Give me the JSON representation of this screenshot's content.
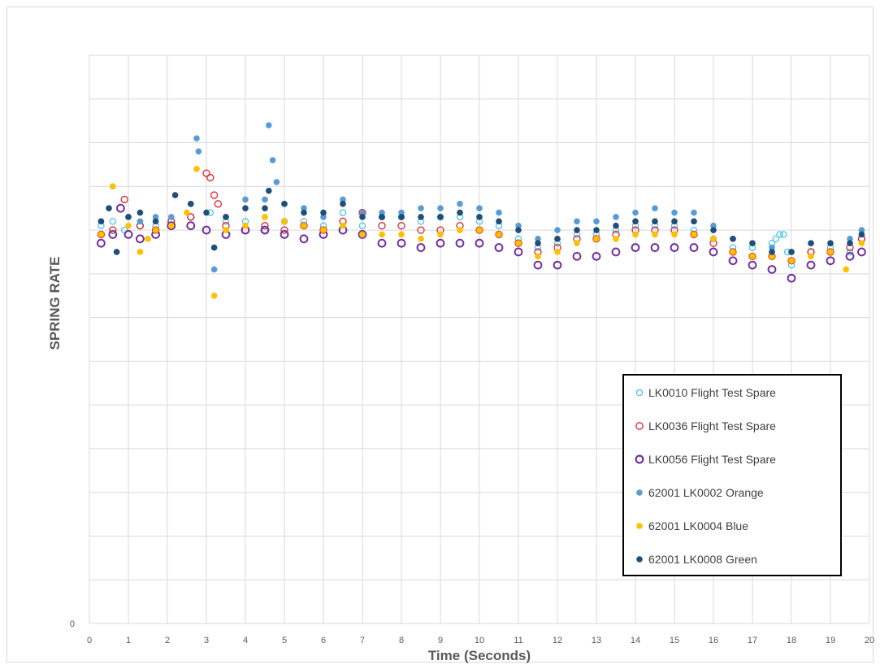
{
  "chart_data": {
    "type": "scatter",
    "title": "",
    "xlabel": "Time (Seconds)",
    "ylabel": "SPRING RATE",
    "xlim": [
      0,
      20
    ],
    "ylim": [
      0,
      130
    ],
    "x_ticks": [
      "0",
      "1",
      "2",
      "3",
      "4",
      "5",
      "6",
      "7",
      "8",
      "9",
      "10",
      "11",
      "12",
      "13",
      "14",
      "15",
      "16",
      "17",
      "18",
      "19",
      "20"
    ],
    "y_ticks": [
      "0"
    ],
    "grid": true,
    "legend_position": "bottom-right",
    "series": [
      {
        "name": "LK0010 Flight Test Spare",
        "color": "#4bc5e8",
        "marker": "hollow",
        "x": [
          0.3,
          0.6,
          0.9,
          1.3,
          1.7,
          2.1,
          2.6,
          3.1,
          3.5,
          4.0,
          4.5,
          5.0,
          5.5,
          6.0,
          6.5,
          7.0,
          7.5,
          8.0,
          8.5,
          9.0,
          9.5,
          10.0,
          10.5,
          11.0,
          11.5,
          12.0,
          12.5,
          13.0,
          13.5,
          14.0,
          14.5,
          15.0,
          15.5,
          16.0,
          16.5,
          17.0,
          17.5,
          17.6,
          17.7,
          17.8,
          17.9,
          18.0,
          18.5,
          19.0,
          19.5,
          19.8
        ],
        "y": [
          91,
          92,
          90,
          91,
          91,
          92,
          93,
          94,
          92,
          92,
          90,
          92,
          92,
          91,
          94,
          91,
          93,
          93,
          92,
          93,
          93,
          92,
          91,
          88,
          86,
          87,
          89,
          89,
          90,
          91,
          91,
          91,
          90,
          88,
          86,
          86,
          87,
          88,
          89,
          89,
          85,
          82,
          85,
          86,
          85,
          88
        ]
      },
      {
        "name": "LK0036 Flight Test Spare",
        "color": "#e0262b",
        "marker": "hollow",
        "x": [
          0.3,
          0.6,
          0.9,
          1.3,
          1.7,
          2.1,
          2.6,
          3.0,
          3.1,
          3.2,
          3.3,
          3.5,
          4.0,
          4.5,
          5.0,
          5.5,
          6.0,
          6.5,
          7.0,
          7.5,
          8.0,
          8.5,
          9.0,
          9.5,
          10.0,
          10.5,
          11.0,
          11.5,
          12.0,
          12.5,
          13.0,
          13.5,
          14.0,
          14.5,
          15.0,
          15.5,
          16.0,
          16.5,
          17.0,
          17.5,
          18.0,
          18.5,
          19.0,
          19.5,
          19.8
        ],
        "y": [
          89,
          90,
          97,
          91,
          90,
          92,
          93,
          103,
          102,
          98,
          96,
          91,
          90,
          91,
          90,
          91,
          90,
          92,
          94,
          91,
          91,
          90,
          90,
          91,
          90,
          89,
          87,
          85,
          86,
          88,
          88,
          89,
          90,
          90,
          90,
          89,
          87,
          85,
          84,
          84,
          83,
          85,
          85,
          86,
          88
        ]
      },
      {
        "name": "LK0056 Flight Test Spare",
        "color": "#7030a0",
        "marker": "hollow",
        "x": [
          0.3,
          0.6,
          0.8,
          1.0,
          1.3,
          1.7,
          2.1,
          2.6,
          3.0,
          3.5,
          4.0,
          4.5,
          5.0,
          5.5,
          6.0,
          6.5,
          7.0,
          7.5,
          8.0,
          8.5,
          9.0,
          9.5,
          10.0,
          10.5,
          11.0,
          11.5,
          12.0,
          12.5,
          13.0,
          13.5,
          14.0,
          14.5,
          15.0,
          15.5,
          16.0,
          16.5,
          17.0,
          17.5,
          18.0,
          18.5,
          19.0,
          19.5,
          19.8
        ],
        "y": [
          87,
          89,
          95,
          89,
          88,
          89,
          91,
          91,
          90,
          89,
          90,
          90,
          89,
          88,
          89,
          90,
          89,
          87,
          87,
          86,
          87,
          87,
          87,
          86,
          85,
          82,
          82,
          84,
          84,
          85,
          86,
          86,
          86,
          86,
          85,
          83,
          82,
          81,
          79,
          82,
          83,
          84,
          85
        ]
      },
      {
        "name": "62001 LK0002 Orange",
        "color": "#5b9bd5",
        "marker": "filled",
        "x": [
          0.3,
          0.6,
          1.0,
          1.3,
          1.7,
          2.1,
          2.6,
          2.75,
          2.8,
          3.2,
          3.5,
          4.0,
          4.5,
          4.6,
          4.7,
          4.8,
          5.0,
          5.5,
          6.0,
          6.5,
          7.0,
          7.5,
          8.0,
          8.5,
          9.0,
          9.5,
          10.0,
          10.5,
          11.0,
          11.5,
          12.0,
          12.5,
          13.0,
          13.5,
          14.0,
          14.5,
          15.0,
          15.5,
          16.0,
          16.5,
          17.0,
          17.5,
          18.0,
          18.5,
          19.0,
          19.5,
          19.8
        ],
        "y": [
          92,
          100,
          93,
          92,
          93,
          93,
          96,
          111,
          108,
          81,
          93,
          97,
          97,
          114,
          106,
          101,
          96,
          95,
          93,
          97,
          94,
          94,
          94,
          95,
          95,
          96,
          95,
          94,
          91,
          88,
          90,
          92,
          92,
          93,
          94,
          95,
          94,
          94,
          91,
          88,
          87,
          86,
          85,
          87,
          87,
          88,
          90
        ]
      },
      {
        "name": "62001 LK0004 Blue",
        "color": "#ffc000",
        "marker": "filled",
        "x": [
          0.3,
          0.6,
          1.0,
          1.3,
          1.5,
          1.7,
          2.1,
          2.5,
          2.75,
          3.2,
          3.5,
          4.0,
          4.5,
          5.0,
          5.5,
          6.0,
          6.5,
          7.0,
          7.5,
          8.0,
          8.5,
          9.0,
          9.5,
          10.0,
          10.5,
          11.0,
          11.5,
          12.0,
          12.5,
          13.0,
          13.5,
          14.0,
          14.5,
          15.0,
          15.5,
          16.0,
          16.5,
          17.0,
          17.5,
          18.0,
          18.5,
          19.0,
          19.4,
          19.8
        ],
        "y": [
          89,
          100,
          91,
          85,
          88,
          90,
          91,
          94,
          104,
          75,
          90,
          91,
          93,
          92,
          91,
          90,
          91,
          89,
          89,
          89,
          88,
          89,
          90,
          90,
          89,
          87,
          84,
          85,
          87,
          88,
          88,
          89,
          89,
          89,
          89,
          88,
          85,
          84,
          84,
          83,
          84,
          85,
          81,
          87
        ]
      },
      {
        "name": "62001 LK0008 Green",
        "color": "#1f4e79",
        "marker": "filled",
        "x": [
          0.3,
          0.5,
          0.7,
          1.0,
          1.3,
          1.7,
          2.2,
          2.6,
          3.0,
          3.2,
          3.5,
          4.0,
          4.5,
          4.6,
          5.0,
          5.5,
          6.0,
          6.5,
          7.0,
          7.5,
          8.0,
          8.5,
          9.0,
          9.5,
          10.0,
          10.5,
          11.0,
          11.5,
          12.0,
          12.5,
          13.0,
          13.5,
          14.0,
          14.5,
          15.0,
          15.5,
          16.0,
          16.5,
          17.0,
          17.5,
          18.0,
          18.5,
          19.0,
          19.5,
          19.8
        ],
        "y": [
          92,
          95,
          85,
          93,
          94,
          92,
          98,
          96,
          94,
          86,
          93,
          95,
          95,
          99,
          96,
          94,
          94,
          96,
          93,
          93,
          93,
          93,
          93,
          94,
          93,
          92,
          90,
          87,
          88,
          90,
          90,
          91,
          92,
          92,
          92,
          92,
          90,
          88,
          87,
          85,
          85,
          87,
          87,
          87,
          89
        ]
      }
    ]
  }
}
